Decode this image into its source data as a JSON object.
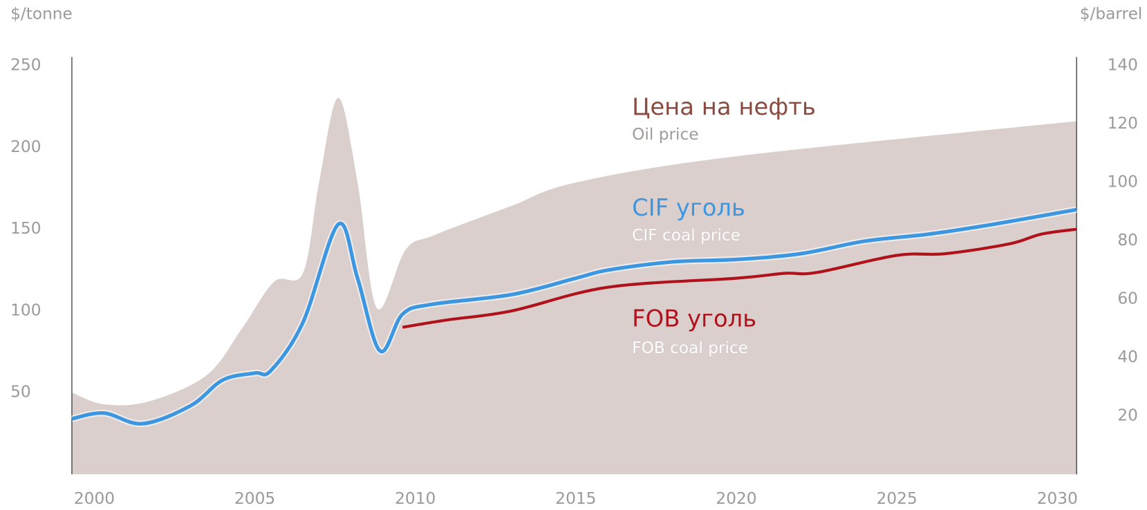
{
  "chart_data": {
    "type": "line",
    "y_label": "$/tonne",
    "y2_label": "$/barrel",
    "xlim": [
      1999.3,
      2030.6
    ],
    "xticks": [
      2000,
      2005,
      2010,
      2015,
      2020,
      2025,
      2030
    ],
    "ylim": [
      0,
      250
    ],
    "yticks": [
      50,
      100,
      150,
      200,
      250
    ],
    "y2lim": [
      0,
      140
    ],
    "y2ticks": [
      20,
      40,
      60,
      80,
      100,
      120,
      140
    ],
    "series": [
      {
        "name": "Цена на нефть",
        "subtitle": "Oil price",
        "kind": "area",
        "axis": "y2",
        "color": "#dacfcd",
        "label_color": "#8b4a3f",
        "x": [
          1999.3,
          2000.3,
          2001.7,
          2003.5,
          2004.6,
          2005.6,
          2006.5,
          2007,
          2007.6,
          2008.2,
          2008.8,
          2009.7,
          2010.6,
          2013,
          2015,
          2020,
          2030.6
        ],
        "values": [
          28,
          24,
          25,
          34,
          50,
          66,
          69,
          100,
          129,
          100,
          57,
          77,
          82,
          92,
          100,
          109,
          121
        ]
      },
      {
        "name": "CIF уголь",
        "subtitle": "CIF coal price",
        "kind": "line",
        "color": "#3d97e0",
        "label_color": "#3d97e0",
        "x": [
          1999.3,
          2000.3,
          2001.5,
          2003,
          2004,
          2005,
          2005.5,
          2006.5,
          2007.6,
          2008.2,
          2008.9,
          2009.6,
          2010.5,
          2013,
          2015,
          2016,
          2018,
          2020,
          2022,
          2024,
          2026,
          2028,
          2030.6
        ],
        "values": [
          34,
          37.5,
          31,
          42,
          57.7,
          62,
          63.5,
          93,
          153,
          120,
          75.5,
          98,
          104,
          110,
          120,
          125,
          130,
          131.5,
          135,
          142.7,
          147,
          153,
          162
        ]
      },
      {
        "name": "FOB уголь",
        "subtitle": "FOB coal price",
        "kind": "line",
        "color": "#b0121b",
        "label_color": "#b0121b",
        "x": [
          2009.6,
          2011,
          2013,
          2016,
          2020,
          2021.5,
          2022.5,
          2025,
          2026.5,
          2028.5,
          2029.5,
          2030.6
        ],
        "values": [
          90,
          94.5,
          100,
          114.5,
          120,
          123,
          123.5,
          134,
          135,
          141,
          147,
          150
        ]
      }
    ]
  }
}
